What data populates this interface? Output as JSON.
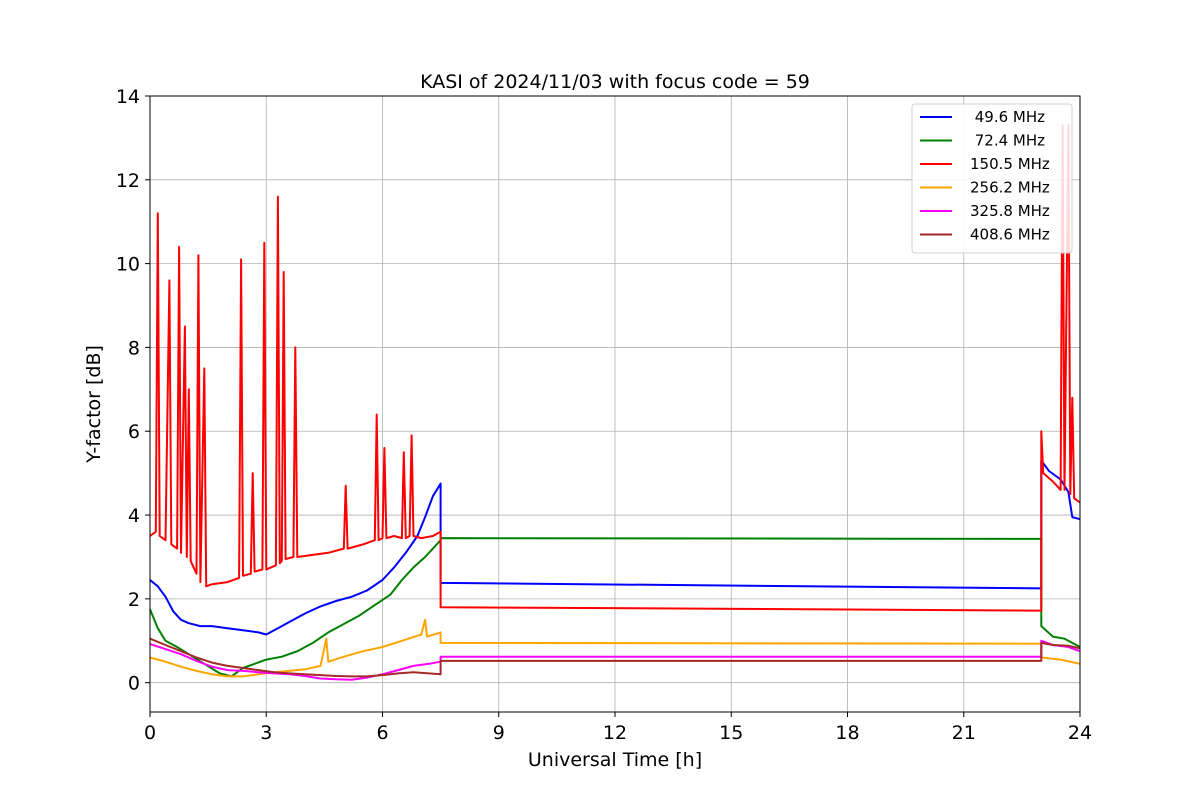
{
  "chart_data": {
    "type": "line",
    "title": "KASI of 2024/11/03 with focus code = 59",
    "xlabel": "Universal Time [h]",
    "ylabel": "Y-factor [dB]",
    "xlim": [
      0,
      24
    ],
    "ylim": [
      -0.7,
      14
    ],
    "xticks": [
      0,
      3,
      6,
      9,
      12,
      15,
      18,
      21,
      24
    ],
    "yticks": [
      0,
      2,
      4,
      6,
      8,
      10,
      12,
      14
    ],
    "grid": true,
    "legend_position": "top-right",
    "series": [
      {
        "name": " 49.6 MHz",
        "color": "#0000ff",
        "points": [
          [
            0.0,
            2.45
          ],
          [
            0.2,
            2.3
          ],
          [
            0.4,
            2.05
          ],
          [
            0.6,
            1.7
          ],
          [
            0.8,
            1.5
          ],
          [
            1.0,
            1.42
          ],
          [
            1.3,
            1.35
          ],
          [
            1.6,
            1.35
          ],
          [
            2.0,
            1.3
          ],
          [
            2.4,
            1.25
          ],
          [
            2.8,
            1.2
          ],
          [
            3.0,
            1.15
          ],
          [
            3.3,
            1.3
          ],
          [
            3.6,
            1.45
          ],
          [
            4.0,
            1.65
          ],
          [
            4.4,
            1.82
          ],
          [
            4.8,
            1.95
          ],
          [
            5.2,
            2.05
          ],
          [
            5.6,
            2.2
          ],
          [
            6.0,
            2.45
          ],
          [
            6.3,
            2.75
          ],
          [
            6.6,
            3.1
          ],
          [
            6.9,
            3.5
          ],
          [
            7.1,
            3.95
          ],
          [
            7.3,
            4.45
          ],
          [
            7.5,
            4.75
          ],
          [
            7.5,
            2.38
          ],
          [
            23.0,
            2.25
          ],
          [
            23.0,
            5.3
          ],
          [
            23.2,
            5.05
          ],
          [
            23.5,
            4.85
          ],
          [
            23.7,
            4.55
          ],
          [
            23.8,
            3.95
          ],
          [
            24.0,
            3.9
          ]
        ]
      },
      {
        "name": " 72.4 MHz",
        "color": "#008000",
        "points": [
          [
            0.0,
            1.75
          ],
          [
            0.2,
            1.3
          ],
          [
            0.4,
            1.0
          ],
          [
            0.7,
            0.85
          ],
          [
            1.0,
            0.68
          ],
          [
            1.4,
            0.45
          ],
          [
            1.8,
            0.22
          ],
          [
            2.1,
            0.15
          ],
          [
            2.4,
            0.35
          ],
          [
            2.7,
            0.45
          ],
          [
            3.0,
            0.55
          ],
          [
            3.4,
            0.62
          ],
          [
            3.8,
            0.75
          ],
          [
            4.2,
            0.95
          ],
          [
            4.6,
            1.2
          ],
          [
            5.0,
            1.4
          ],
          [
            5.4,
            1.6
          ],
          [
            5.8,
            1.85
          ],
          [
            6.2,
            2.1
          ],
          [
            6.5,
            2.45
          ],
          [
            6.8,
            2.75
          ],
          [
            7.1,
            3.0
          ],
          [
            7.3,
            3.2
          ],
          [
            7.5,
            3.4
          ],
          [
            7.5,
            3.45
          ],
          [
            23.0,
            3.43
          ],
          [
            23.0,
            1.35
          ],
          [
            23.3,
            1.1
          ],
          [
            23.6,
            1.05
          ],
          [
            23.8,
            0.95
          ],
          [
            24.0,
            0.85
          ]
        ]
      },
      {
        "name": "150.5 MHz",
        "color": "#ff0000",
        "points": [
          [
            0.0,
            3.5
          ],
          [
            0.15,
            3.6
          ],
          [
            0.2,
            11.2
          ],
          [
            0.25,
            3.5
          ],
          [
            0.4,
            3.4
          ],
          [
            0.5,
            9.6
          ],
          [
            0.55,
            3.3
          ],
          [
            0.7,
            3.2
          ],
          [
            0.75,
            10.4
          ],
          [
            0.8,
            3.1
          ],
          [
            0.9,
            8.5
          ],
          [
            0.95,
            3.0
          ],
          [
            1.0,
            7.0
          ],
          [
            1.05,
            2.9
          ],
          [
            1.2,
            2.6
          ],
          [
            1.25,
            10.2
          ],
          [
            1.3,
            2.4
          ],
          [
            1.4,
            7.5
          ],
          [
            1.45,
            2.3
          ],
          [
            1.6,
            2.35
          ],
          [
            2.0,
            2.4
          ],
          [
            2.3,
            2.5
          ],
          [
            2.35,
            10.1
          ],
          [
            2.4,
            2.55
          ],
          [
            2.6,
            2.6
          ],
          [
            2.65,
            5.0
          ],
          [
            2.7,
            2.65
          ],
          [
            2.9,
            2.7
          ],
          [
            2.95,
            10.5
          ],
          [
            3.0,
            2.7
          ],
          [
            3.25,
            2.8
          ],
          [
            3.3,
            11.6
          ],
          [
            3.35,
            2.85
          ],
          [
            3.4,
            2.9
          ],
          [
            3.45,
            9.8
          ],
          [
            3.5,
            2.95
          ],
          [
            3.7,
            3.0
          ],
          [
            3.75,
            8.0
          ],
          [
            3.8,
            3.0
          ],
          [
            4.2,
            3.05
          ],
          [
            4.6,
            3.1
          ],
          [
            5.0,
            3.2
          ],
          [
            5.05,
            4.7
          ],
          [
            5.1,
            3.2
          ],
          [
            5.5,
            3.3
          ],
          [
            5.8,
            3.4
          ],
          [
            5.85,
            6.4
          ],
          [
            5.9,
            3.4
          ],
          [
            6.0,
            3.45
          ],
          [
            6.05,
            5.6
          ],
          [
            6.1,
            3.45
          ],
          [
            6.3,
            3.5
          ],
          [
            6.5,
            3.45
          ],
          [
            6.55,
            5.5
          ],
          [
            6.6,
            3.45
          ],
          [
            6.7,
            3.5
          ],
          [
            6.75,
            5.9
          ],
          [
            6.8,
            3.5
          ],
          [
            7.0,
            3.45
          ],
          [
            7.3,
            3.5
          ],
          [
            7.5,
            3.6
          ],
          [
            7.5,
            1.8
          ],
          [
            23.0,
            1.72
          ],
          [
            23.0,
            6.0
          ],
          [
            23.05,
            5.0
          ],
          [
            23.3,
            4.8
          ],
          [
            23.5,
            4.6
          ],
          [
            23.55,
            13.3
          ],
          [
            23.6,
            4.6
          ],
          [
            23.7,
            13.3
          ],
          [
            23.75,
            4.5
          ],
          [
            23.8,
            6.8
          ],
          [
            23.85,
            4.4
          ],
          [
            24.0,
            4.3
          ]
        ]
      },
      {
        "name": "256.2 MHz",
        "color": "#ffa500",
        "points": [
          [
            0.0,
            0.6
          ],
          [
            0.4,
            0.5
          ],
          [
            0.8,
            0.38
          ],
          [
            1.2,
            0.28
          ],
          [
            1.6,
            0.2
          ],
          [
            2.0,
            0.15
          ],
          [
            2.4,
            0.15
          ],
          [
            2.8,
            0.2
          ],
          [
            3.2,
            0.25
          ],
          [
            3.6,
            0.28
          ],
          [
            4.0,
            0.32
          ],
          [
            4.4,
            0.4
          ],
          [
            4.55,
            1.05
          ],
          [
            4.6,
            0.5
          ],
          [
            5.0,
            0.62
          ],
          [
            5.5,
            0.75
          ],
          [
            6.0,
            0.85
          ],
          [
            6.5,
            1.0
          ],
          [
            7.0,
            1.15
          ],
          [
            7.1,
            1.5
          ],
          [
            7.15,
            1.1
          ],
          [
            7.5,
            1.2
          ],
          [
            7.5,
            0.95
          ],
          [
            23.0,
            0.93
          ],
          [
            23.0,
            0.6
          ],
          [
            23.5,
            0.55
          ],
          [
            24.0,
            0.45
          ]
        ]
      },
      {
        "name": "325.8 MHz",
        "color": "#ff00ff",
        "points": [
          [
            0.0,
            0.92
          ],
          [
            0.4,
            0.8
          ],
          [
            0.8,
            0.68
          ],
          [
            1.2,
            0.52
          ],
          [
            1.6,
            0.38
          ],
          [
            2.0,
            0.3
          ],
          [
            2.4,
            0.28
          ],
          [
            2.8,
            0.25
          ],
          [
            3.2,
            0.22
          ],
          [
            3.6,
            0.2
          ],
          [
            4.0,
            0.16
          ],
          [
            4.4,
            0.1
          ],
          [
            4.8,
            0.08
          ],
          [
            5.2,
            0.07
          ],
          [
            5.6,
            0.12
          ],
          [
            6.0,
            0.2
          ],
          [
            6.4,
            0.3
          ],
          [
            6.8,
            0.4
          ],
          [
            7.2,
            0.45
          ],
          [
            7.5,
            0.5
          ],
          [
            7.5,
            0.62
          ],
          [
            23.0,
            0.62
          ],
          [
            23.0,
            1.0
          ],
          [
            23.3,
            0.9
          ],
          [
            23.7,
            0.85
          ],
          [
            24.0,
            0.75
          ]
        ]
      },
      {
        "name": "408.6 MHz",
        "color": "#a52a2a",
        "points": [
          [
            0.0,
            1.05
          ],
          [
            0.4,
            0.9
          ],
          [
            0.8,
            0.75
          ],
          [
            1.2,
            0.6
          ],
          [
            1.6,
            0.48
          ],
          [
            2.0,
            0.4
          ],
          [
            2.4,
            0.35
          ],
          [
            2.8,
            0.3
          ],
          [
            3.2,
            0.25
          ],
          [
            3.6,
            0.22
          ],
          [
            4.0,
            0.2
          ],
          [
            4.4,
            0.18
          ],
          [
            4.8,
            0.16
          ],
          [
            5.2,
            0.15
          ],
          [
            5.6,
            0.15
          ],
          [
            6.0,
            0.18
          ],
          [
            6.4,
            0.22
          ],
          [
            6.8,
            0.25
          ],
          [
            7.2,
            0.22
          ],
          [
            7.5,
            0.2
          ],
          [
            7.5,
            0.52
          ],
          [
            23.0,
            0.52
          ],
          [
            23.0,
            0.95
          ],
          [
            23.3,
            0.9
          ],
          [
            23.7,
            0.88
          ],
          [
            24.0,
            0.82
          ]
        ]
      }
    ]
  }
}
